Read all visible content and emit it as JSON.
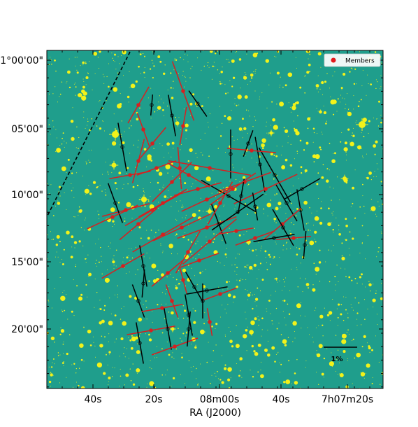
{
  "image": {
    "kind": "polarization map over optical sky image",
    "background_color": "#1f9e8c",
    "star_color": "#f2f21a"
  },
  "axes": {
    "xlabel": "RA (J2000)",
    "x_ticks": [
      "40s",
      "20s",
      "08m00s",
      "40s",
      "7h07m20s"
    ],
    "y_ticks": [
      "-1°00'00\"",
      "05'00\"",
      "10'00\"",
      "15'00\"",
      "20'00\""
    ]
  },
  "legend": {
    "position": "top-right",
    "entries": [
      {
        "label": "Members",
        "marker": "red-dot",
        "color": "#e31a1c"
      }
    ]
  },
  "scale_bar": {
    "label": "1%"
  },
  "colors": {
    "member": "#d62020",
    "field": "#000000"
  }
}
